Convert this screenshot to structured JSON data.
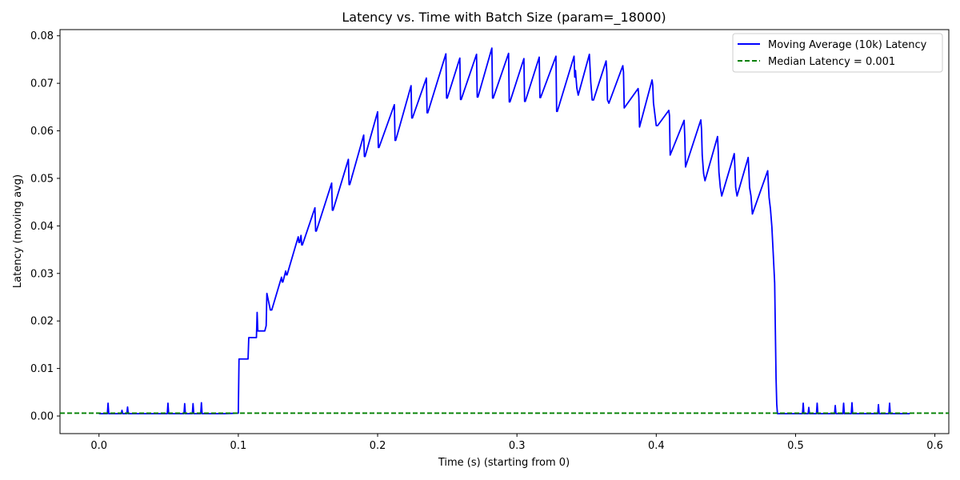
{
  "chart_data": {
    "type": "line",
    "title": "Latency vs. Time with Batch Size (param=_18000)",
    "xlabel": "Time (s) (starting from 0)",
    "ylabel": "Latency (moving avg)",
    "xlim": [
      -0.028,
      0.61
    ],
    "ylim": [
      -0.0037,
      0.0813
    ],
    "xticks": [
      0.0,
      0.1,
      0.2,
      0.3,
      0.4,
      0.5,
      0.6
    ],
    "xtick_labels": [
      "0.0",
      "0.1",
      "0.2",
      "0.3",
      "0.4",
      "0.5",
      "0.6"
    ],
    "yticks": [
      0.0,
      0.01,
      0.02,
      0.03,
      0.04,
      0.05,
      0.06,
      0.07,
      0.08
    ],
    "ytick_labels": [
      "0.00",
      "0.01",
      "0.02",
      "0.03",
      "0.04",
      "0.05",
      "0.06",
      "0.07",
      "0.08"
    ],
    "grid": false,
    "legend_position": "top-right",
    "series": [
      {
        "name": "Moving Average (10k) Latency",
        "color": "#0000ff",
        "style": "solid",
        "x": [
          0.0,
          0.006,
          0.0065,
          0.007,
          0.016,
          0.0165,
          0.017,
          0.02,
          0.0205,
          0.021,
          0.049,
          0.0495,
          0.05,
          0.061,
          0.0615,
          0.062,
          0.067,
          0.0675,
          0.068,
          0.073,
          0.0735,
          0.074,
          0.09,
          0.1,
          0.1005,
          0.101,
          0.107,
          0.1075,
          0.108,
          0.113,
          0.1135,
          0.114,
          0.119,
          0.12,
          0.1205,
          0.123,
          0.1235,
          0.124,
          0.131,
          0.1315,
          0.132,
          0.134,
          0.1345,
          0.135,
          0.143,
          0.1435,
          0.144,
          0.145,
          0.1455,
          0.146,
          0.155,
          0.1555,
          0.156,
          0.167,
          0.1675,
          0.168,
          0.179,
          0.1795,
          0.18,
          0.19,
          0.1905,
          0.191,
          0.2,
          0.2005,
          0.201,
          0.212,
          0.2125,
          0.213,
          0.224,
          0.2245,
          0.225,
          0.235,
          0.2355,
          0.236,
          0.249,
          0.2495,
          0.25,
          0.259,
          0.2595,
          0.26,
          0.271,
          0.2715,
          0.272,
          0.282,
          0.2825,
          0.283,
          0.294,
          0.2945,
          0.295,
          0.305,
          0.3055,
          0.306,
          0.316,
          0.3165,
          0.317,
          0.328,
          0.3285,
          0.329,
          0.341,
          0.3415,
          0.342,
          0.343,
          0.344,
          0.352,
          0.3525,
          0.353,
          0.354,
          0.355,
          0.364,
          0.3645,
          0.365,
          0.366,
          0.376,
          0.3765,
          0.377,
          0.387,
          0.3875,
          0.388,
          0.397,
          0.3975,
          0.398,
          0.4,
          0.401,
          0.409,
          0.4095,
          0.41,
          0.42,
          0.4205,
          0.421,
          0.432,
          0.4325,
          0.433,
          0.434,
          0.435,
          0.444,
          0.4445,
          0.445,
          0.446,
          0.447,
          0.456,
          0.4565,
          0.457,
          0.458,
          0.466,
          0.4665,
          0.467,
          0.468,
          0.469,
          0.48,
          0.4805,
          0.481,
          0.482,
          0.483,
          0.484,
          0.485,
          0.4855,
          0.486,
          0.4865,
          0.487,
          0.505,
          0.5055,
          0.506,
          0.509,
          0.5095,
          0.51,
          0.515,
          0.5155,
          0.516,
          0.528,
          0.5285,
          0.529,
          0.534,
          0.5345,
          0.535,
          0.54,
          0.5405,
          0.541,
          0.559,
          0.5595,
          0.56,
          0.567,
          0.5675,
          0.568,
          0.58,
          0.582
        ],
        "y": [
          0.0005,
          0.0005,
          0.0027,
          0.0005,
          0.0005,
          0.0012,
          0.0005,
          0.0005,
          0.0019,
          0.0005,
          0.0005,
          0.0027,
          0.0005,
          0.0005,
          0.0026,
          0.0005,
          0.0005,
          0.0026,
          0.0005,
          0.0005,
          0.0028,
          0.0005,
          0.0005,
          0.0006,
          0.012,
          0.012,
          0.012,
          0.0165,
          0.0165,
          0.0165,
          0.0218,
          0.0179,
          0.0179,
          0.019,
          0.0258,
          0.0223,
          0.0223,
          0.0223,
          0.0292,
          0.0282,
          0.0282,
          0.0305,
          0.0297,
          0.0297,
          0.0377,
          0.0365,
          0.0365,
          0.038,
          0.036,
          0.036,
          0.0438,
          0.0389,
          0.0389,
          0.049,
          0.0433,
          0.0433,
          0.054,
          0.0487,
          0.0487,
          0.0591,
          0.0546,
          0.0546,
          0.064,
          0.0565,
          0.0565,
          0.0655,
          0.058,
          0.058,
          0.0695,
          0.0627,
          0.0627,
          0.0711,
          0.0638,
          0.0638,
          0.0762,
          0.0669,
          0.0669,
          0.0753,
          0.0666,
          0.0666,
          0.0761,
          0.0671,
          0.0671,
          0.0774,
          0.0669,
          0.0669,
          0.0763,
          0.0661,
          0.0661,
          0.0752,
          0.0662,
          0.0662,
          0.0755,
          0.067,
          0.067,
          0.0757,
          0.0641,
          0.0641,
          0.0757,
          0.0713,
          0.0727,
          0.069,
          0.0675,
          0.0761,
          0.0732,
          0.0702,
          0.0665,
          0.0665,
          0.0747,
          0.0725,
          0.0665,
          0.0658,
          0.0737,
          0.0723,
          0.0648,
          0.0689,
          0.0671,
          0.0608,
          0.0707,
          0.0696,
          0.0659,
          0.0611,
          0.0611,
          0.0643,
          0.0632,
          0.0549,
          0.0622,
          0.0586,
          0.0524,
          0.0623,
          0.0603,
          0.0549,
          0.051,
          0.0495,
          0.0588,
          0.0557,
          0.0513,
          0.0481,
          0.0463,
          0.0552,
          0.0519,
          0.0481,
          0.0463,
          0.0544,
          0.0515,
          0.0481,
          0.0463,
          0.0425,
          0.0516,
          0.0487,
          0.046,
          0.0435,
          0.0398,
          0.034,
          0.028,
          0.018,
          0.008,
          0.0025,
          0.0005,
          0.0005,
          0.0027,
          0.0005,
          0.0005,
          0.0018,
          0.0005,
          0.0005,
          0.0027,
          0.0005,
          0.0005,
          0.0022,
          0.0005,
          0.0005,
          0.0027,
          0.0005,
          0.0005,
          0.0028,
          0.0005,
          0.0005,
          0.0024,
          0.0005,
          0.0005,
          0.0027,
          0.0005,
          0.0005,
          0.0005
        ]
      },
      {
        "name": "Median Latency = 0.001",
        "color": "#008000",
        "style": "dashed",
        "hline": 0.0006
      }
    ]
  }
}
